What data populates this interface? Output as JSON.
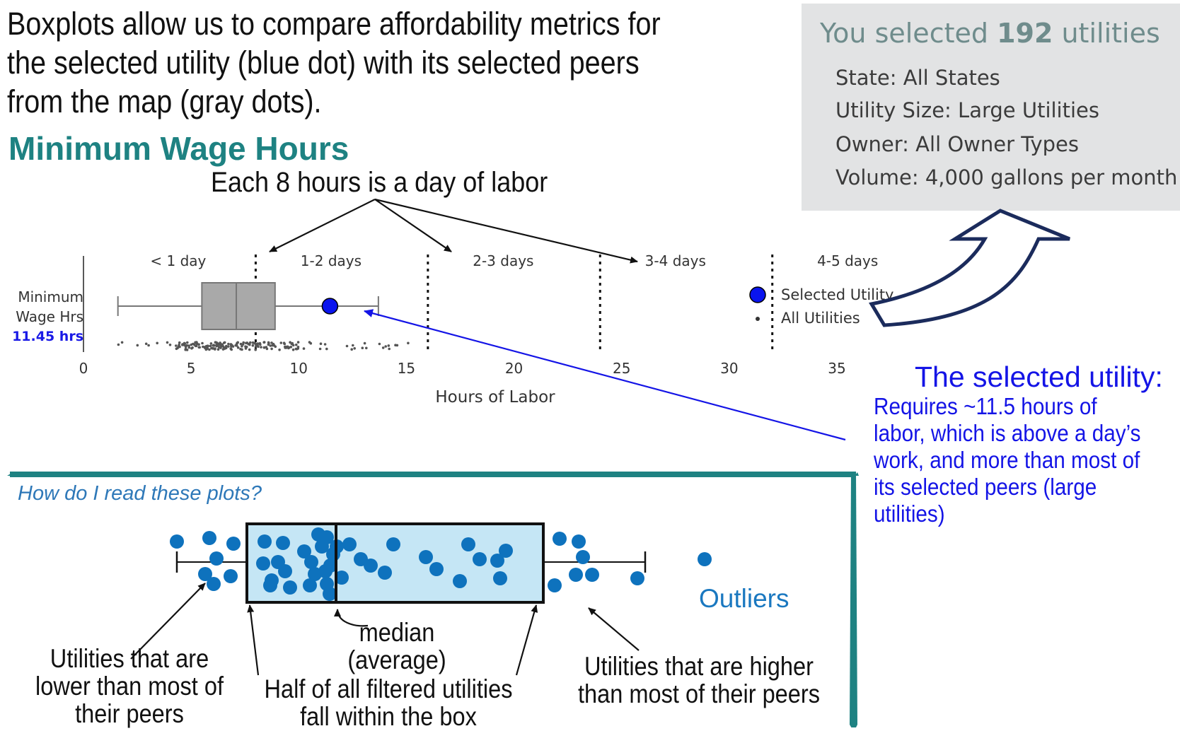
{
  "intro": {
    "text": "Boxplots allow us to compare affordability metrics for the selected utility (blue dot) with its selected peers from the map (gray dots)."
  },
  "section_title": "Minimum Wage Hours",
  "day_note": "Each 8 hours is a day of labor",
  "info_box": {
    "heading_prefix": "You selected ",
    "count": "192",
    "heading_suffix": " utilities",
    "lines": [
      "State: All States",
      "Utility Size: Large Utilities",
      "Owner: All Owner Types",
      "Volume: 4,000 gallons per month"
    ]
  },
  "chart_data": {
    "type": "boxplot",
    "row_label_line1": "Minimum",
    "row_label_line2": "Wage Hrs",
    "row_value": "11.45 hrs",
    "xlabel": "Hours of Labor",
    "xlim": [
      0,
      35
    ],
    "ticks": [
      0,
      5,
      10,
      15,
      20,
      25,
      30,
      35
    ],
    "tick_labels": [
      "0",
      "5",
      "10",
      "15",
      "20",
      "25",
      "30",
      "35"
    ],
    "box": {
      "whisker_low": 1.6,
      "q1": 5.5,
      "median": 7.1,
      "q3": 8.9,
      "whisker_high": 13.7
    },
    "selected_value": 11.45,
    "day_boundaries": [
      8,
      16,
      24,
      32
    ],
    "day_categories": [
      {
        "label": "< 1 day",
        "center": 4.4
      },
      {
        "label": "1-2 days",
        "center": 11.5
      },
      {
        "label": "2-3 days",
        "center": 19.5
      },
      {
        "label": "3-4 days",
        "center": 27.5
      },
      {
        "label": "4-5 days",
        "center": 35.5
      }
    ],
    "legend": [
      {
        "label": "Selected Utility",
        "marker": "blue-dot"
      },
      {
        "label": "All Utilities",
        "marker": "gray-dot"
      }
    ],
    "colors": {
      "selected": "#0a14ee",
      "box_fill": "#a9a9a9",
      "points": "#555555"
    }
  },
  "annotation": {
    "heading": "The selected utility:",
    "body": "Requires ~11.5 hours of labor, which is above a day’s work, and more than most of its selected peers (large utilities)"
  },
  "explainer": {
    "prompt": "How do I read these plots?",
    "median_line1": "median",
    "median_line2": "(average)",
    "lower_line1": "Utilities that are",
    "lower_line2": "lower than most of",
    "lower_line3": "their peers",
    "box_line1": "Half of all filtered utilities",
    "box_line2": "fall within the box",
    "higher_line1": "Utilities that are higher",
    "higher_line2": "than most of their peers",
    "outliers": "Outliers",
    "colors": {
      "dot": "#0e72bd",
      "box_fill": "#c5e6f5",
      "teal": "#1e8282"
    }
  }
}
